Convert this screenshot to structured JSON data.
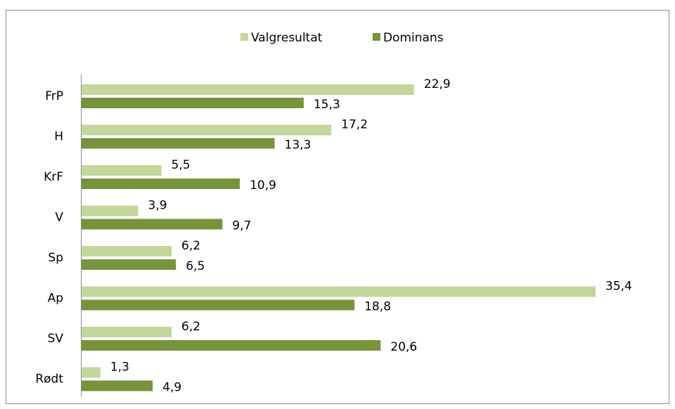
{
  "chart_data": {
    "type": "hbar",
    "categories": [
      "FrP",
      "H",
      "KrF",
      "V",
      "Sp",
      "Ap",
      "SV",
      "Rødt"
    ],
    "series": [
      {
        "name": "Valgresultat",
        "color": "#c3d69b",
        "values": [
          22.9,
          17.2,
          5.5,
          3.9,
          6.2,
          35.4,
          6.2,
          1.3
        ],
        "value_labels": [
          "22,9",
          "17,2",
          "5,5",
          "3,9",
          "6,2",
          "35,4",
          "6,2",
          "1,3"
        ]
      },
      {
        "name": "Dominans",
        "color": "#77933c",
        "values": [
          15.3,
          13.3,
          10.9,
          9.7,
          6.5,
          18.8,
          20.6,
          4.9
        ],
        "value_labels": [
          "15,3",
          "13,3",
          "10,9",
          "9,7",
          "6,5",
          "18,8",
          "20,6",
          "4,9"
        ]
      }
    ],
    "legend": "top"
  }
}
